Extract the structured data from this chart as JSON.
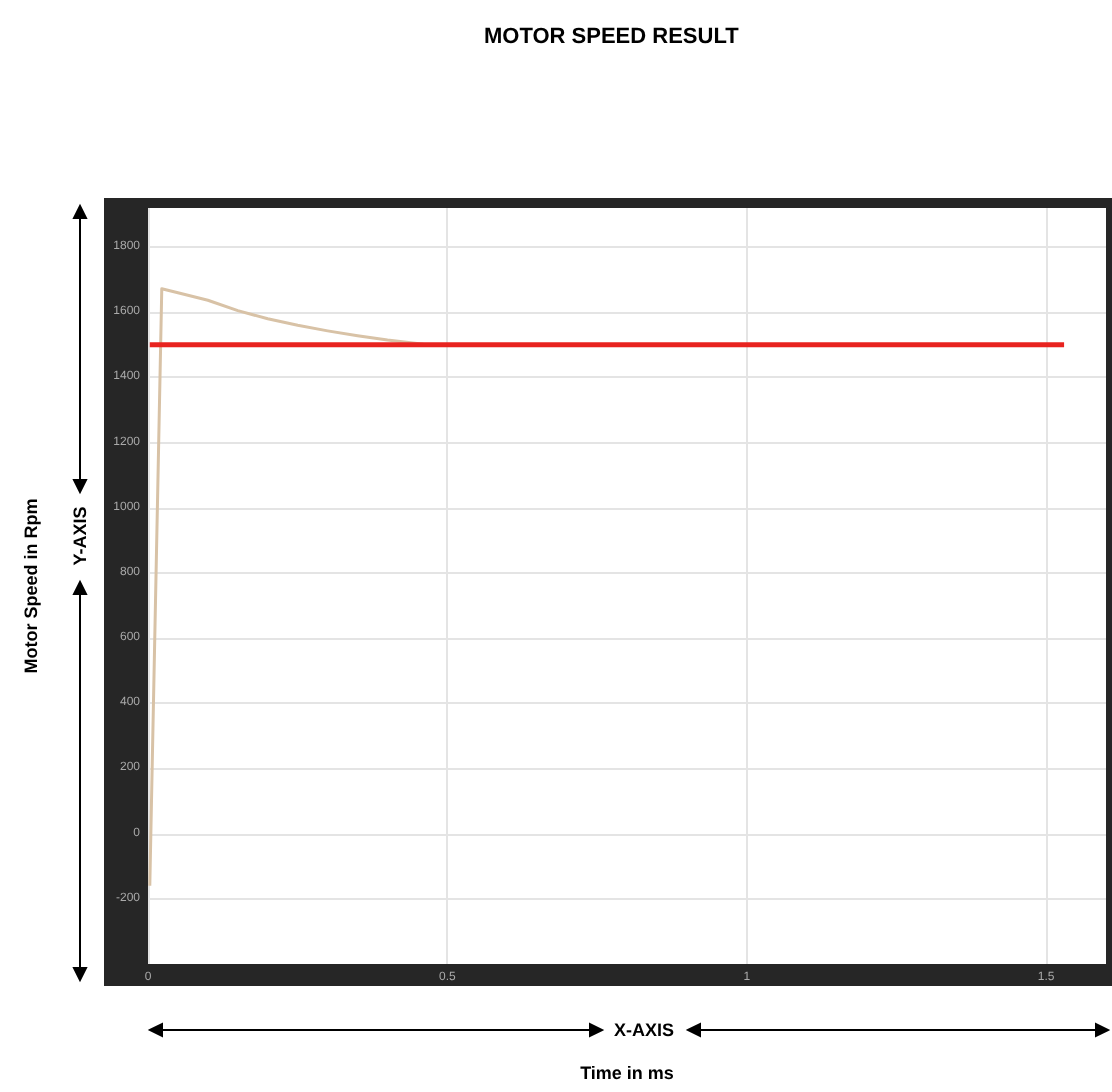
{
  "chart_data": {
    "type": "line",
    "title": "MOTOR SPEED RESULT",
    "xlabel": "Time in ms",
    "ylabel": "Motor Speed in Rpm",
    "annotations": [
      "X-AXIS",
      "Y-AXIS"
    ],
    "xlim": [
      0,
      1.6
    ],
    "ylim": [
      -400,
      1920
    ],
    "xticks": [
      0,
      0.5,
      1,
      1.5
    ],
    "yticks": [
      -200,
      0,
      200,
      400,
      600,
      800,
      1000,
      1200,
      1400,
      1600,
      1800
    ],
    "grid": true,
    "marker": "none",
    "line_style": "solid",
    "series": [
      {
        "color": "#d8c2a6",
        "x": [
          0.003,
          0.023,
          0.05,
          0.1,
          0.15,
          0.2,
          0.25,
          0.3,
          0.35,
          0.4,
          0.46
        ],
        "values": [
          -160,
          1672,
          1660,
          1637,
          1605,
          1580,
          1560,
          1543,
          1528,
          1515,
          1502
        ]
      },
      {
        "color": "#e8231f",
        "x": [
          0.003,
          1.53
        ],
        "values": [
          1500,
          1500
        ]
      }
    ]
  }
}
